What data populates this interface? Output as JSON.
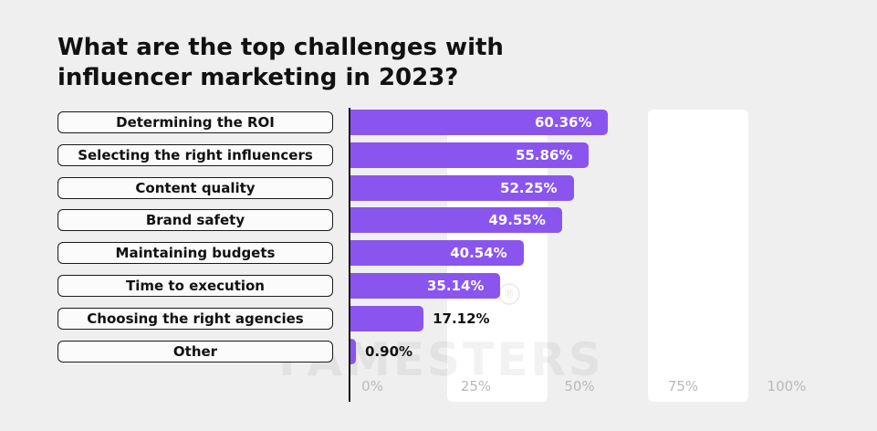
{
  "title": "What are the top challenges with influencer marketing in 2023?",
  "watermark": "FAMESTERS",
  "colors": {
    "bar": "#8a55ee",
    "background": "#efefef",
    "band": "#ffffff"
  },
  "chart_data": {
    "type": "bar",
    "orientation": "horizontal",
    "title": "What are the top challenges with influencer marketing in 2023?",
    "categories": [
      "Determining the ROI",
      "Selecting the right influencers",
      "Content quality",
      "Brand safety",
      "Maintaining budgets",
      "Time to execution",
      "Choosing the right agencies",
      "Other"
    ],
    "values": [
      60.36,
      55.86,
      52.25,
      49.55,
      40.54,
      35.14,
      17.12,
      0.9
    ],
    "value_labels": [
      "60.36%",
      "55.86%",
      "52.25%",
      "49.55%",
      "40.54%",
      "35.14%",
      "17.12%",
      "0.90%"
    ],
    "xlim": [
      0,
      100
    ],
    "xticks": [
      "0%",
      "25%",
      "50%",
      "75%",
      "100%"
    ],
    "grid": "alternating vertical bands"
  }
}
